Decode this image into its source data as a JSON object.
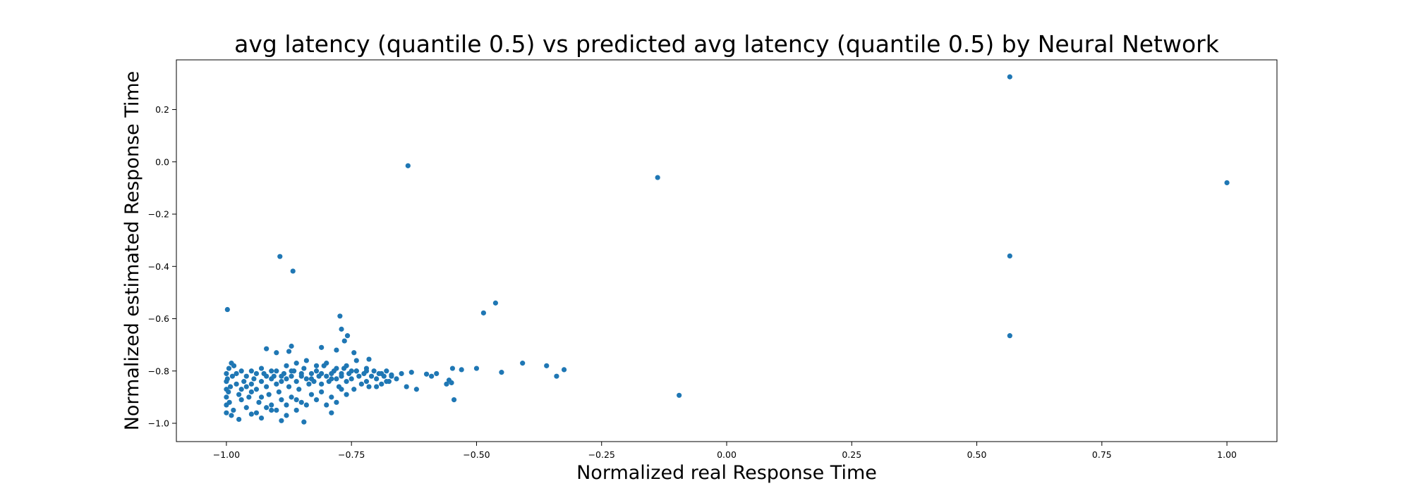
{
  "chart_data": {
    "type": "scatter",
    "title": "avg latency (quantile 0.5) vs predicted avg latency (quantile 0.5) by Neural Network",
    "xlabel": "Normalized real Response Time",
    "ylabel": "Normalized estimated Response Time",
    "xlim": [
      -1.1,
      1.1
    ],
    "ylim": [
      -1.07,
      0.39
    ],
    "xticks": [
      -1.0,
      -0.75,
      -0.5,
      -0.25,
      0.0,
      0.25,
      0.5,
      0.75,
      1.0
    ],
    "xtick_labels": [
      "−1.00",
      "−0.75",
      "−0.50",
      "−0.25",
      "0.00",
      "0.25",
      "0.50",
      "0.75",
      "1.00"
    ],
    "yticks": [
      -1.0,
      -0.8,
      -0.6,
      -0.4,
      -0.2,
      0.0,
      0.2
    ],
    "ytick_labels": [
      "−1.0",
      "−0.8",
      "−0.6",
      "−0.4",
      "−0.2",
      "0.0",
      "0.2"
    ],
    "grid": false,
    "marker_color": "#1f77b4",
    "series": [
      {
        "points": [
          [
            0.566,
            0.325
          ],
          [
            1.0,
            -0.08
          ],
          [
            0.566,
            -0.36
          ],
          [
            0.566,
            -0.665
          ],
          [
            -0.138,
            -0.06
          ],
          [
            -0.637,
            -0.015
          ],
          [
            -0.893,
            -0.362
          ],
          [
            -0.867,
            -0.418
          ],
          [
            -0.998,
            -0.565
          ],
          [
            -0.462,
            -0.54
          ],
          [
            -0.486,
            -0.578
          ],
          [
            -0.095,
            -0.893
          ],
          [
            -0.408,
            -0.77
          ],
          [
            -0.36,
            -0.78
          ],
          [
            -0.34,
            -0.82
          ],
          [
            -0.325,
            -0.795
          ],
          [
            -0.45,
            -0.805
          ],
          [
            -0.5,
            -0.79
          ],
          [
            -0.53,
            -0.795
          ],
          [
            -0.548,
            -0.79
          ],
          [
            -0.55,
            -0.845
          ],
          [
            -0.545,
            -0.91
          ],
          [
            -0.555,
            -0.835
          ],
          [
            -0.56,
            -0.85
          ],
          [
            -0.58,
            -0.81
          ],
          [
            -0.59,
            -0.82
          ],
          [
            -0.6,
            -0.812
          ],
          [
            -0.62,
            -0.87
          ],
          [
            -0.63,
            -0.805
          ],
          [
            -0.64,
            -0.86
          ],
          [
            -0.65,
            -0.81
          ],
          [
            -0.66,
            -0.83
          ],
          [
            -0.67,
            -0.815
          ],
          [
            -0.68,
            -0.84
          ],
          [
            -0.69,
            -0.81
          ],
          [
            -0.7,
            -0.86
          ],
          [
            -0.715,
            -0.755
          ],
          [
            -0.72,
            -0.8
          ],
          [
            -0.74,
            -0.76
          ],
          [
            -0.745,
            -0.73
          ],
          [
            -0.758,
            -0.665
          ],
          [
            -0.764,
            -0.685
          ],
          [
            -0.77,
            -0.64
          ],
          [
            -0.773,
            -0.59
          ],
          [
            -0.78,
            -0.72
          ],
          [
            -0.79,
            -0.96
          ],
          [
            -0.81,
            -0.71
          ],
          [
            -0.845,
            -0.995
          ],
          [
            -0.87,
            -0.705
          ],
          [
            -0.875,
            -0.725
          ],
          [
            -0.9,
            -0.73
          ],
          [
            -0.92,
            -0.715
          ],
          [
            -0.89,
            -0.99
          ],
          [
            -0.88,
            -0.97
          ],
          [
            -0.86,
            -0.95
          ],
          [
            -0.91,
            -0.95
          ],
          [
            -0.93,
            -0.98
          ],
          [
            -0.95,
            -0.965
          ],
          [
            -0.975,
            -0.985
          ],
          [
            -0.99,
            -0.97
          ],
          [
            -0.985,
            -0.78
          ],
          [
            -0.995,
            -0.79
          ],
          [
            -0.99,
            -0.77
          ],
          [
            -1.0,
            -0.81
          ],
          [
            -1.0,
            -0.84
          ],
          [
            -1.0,
            -0.87
          ],
          [
            -1.0,
            -0.9
          ],
          [
            -1.0,
            -0.93
          ],
          [
            -1.0,
            -0.96
          ],
          [
            -0.998,
            -0.83
          ],
          [
            -0.996,
            -0.88
          ],
          [
            -0.994,
            -0.92
          ],
          [
            -0.992,
            -0.86
          ],
          [
            -0.988,
            -0.82
          ],
          [
            -0.986,
            -0.95
          ],
          [
            -0.98,
            -0.85
          ],
          [
            -0.975,
            -0.89
          ],
          [
            -0.97,
            -0.87
          ],
          [
            -0.965,
            -0.84
          ],
          [
            -0.96,
            -0.86
          ],
          [
            -0.955,
            -0.9
          ],
          [
            -0.95,
            -0.85
          ],
          [
            -0.945,
            -0.83
          ],
          [
            -0.94,
            -0.87
          ],
          [
            -0.935,
            -0.92
          ],
          [
            -0.93,
            -0.84
          ],
          [
            -0.925,
            -0.81
          ],
          [
            -0.92,
            -0.86
          ],
          [
            -0.915,
            -0.89
          ],
          [
            -0.91,
            -0.83
          ],
          [
            -0.905,
            -0.82
          ],
          [
            -0.9,
            -0.85
          ],
          [
            -0.895,
            -0.88
          ],
          [
            -0.89,
            -0.84
          ],
          [
            -0.885,
            -0.81
          ],
          [
            -0.88,
            -0.83
          ],
          [
            -0.875,
            -0.86
          ],
          [
            -0.87,
            -0.82
          ],
          [
            -0.865,
            -0.8
          ],
          [
            -0.86,
            -0.84
          ],
          [
            -0.855,
            -0.87
          ],
          [
            -0.85,
            -0.82
          ],
          [
            -0.845,
            -0.79
          ],
          [
            -0.84,
            -0.83
          ],
          [
            -0.835,
            -0.85
          ],
          [
            -0.83,
            -0.81
          ],
          [
            -0.825,
            -0.84
          ],
          [
            -0.82,
            -0.8
          ],
          [
            -0.815,
            -0.82
          ],
          [
            -0.81,
            -0.85
          ],
          [
            -0.805,
            -0.78
          ],
          [
            -0.8,
            -0.82
          ],
          [
            -0.795,
            -0.84
          ],
          [
            -0.79,
            -0.81
          ],
          [
            -0.785,
            -0.8
          ],
          [
            -0.78,
            -0.83
          ],
          [
            -0.775,
            -0.86
          ],
          [
            -0.77,
            -0.82
          ],
          [
            -0.765,
            -0.79
          ],
          [
            -0.76,
            -0.84
          ],
          [
            -0.755,
            -0.81
          ],
          [
            -0.75,
            -0.83
          ],
          [
            -0.745,
            -0.87
          ],
          [
            -0.74,
            -0.8
          ],
          [
            -0.735,
            -0.82
          ],
          [
            -0.73,
            -0.85
          ],
          [
            -0.725,
            -0.81
          ],
          [
            -0.72,
            -0.84
          ],
          [
            -0.715,
            -0.86
          ],
          [
            -0.71,
            -0.82
          ],
          [
            -0.705,
            -0.8
          ],
          [
            -0.7,
            -0.83
          ],
          [
            -0.695,
            -0.81
          ],
          [
            -0.69,
            -0.85
          ],
          [
            -0.685,
            -0.82
          ],
          [
            -0.68,
            -0.8
          ],
          [
            -0.675,
            -0.84
          ],
          [
            -0.67,
            -0.82
          ],
          [
            -0.9,
            -0.8
          ],
          [
            -0.88,
            -0.78
          ],
          [
            -0.86,
            -0.77
          ],
          [
            -0.84,
            -0.76
          ],
          [
            -0.82,
            -0.78
          ],
          [
            -0.8,
            -0.77
          ],
          [
            -0.78,
            -0.79
          ],
          [
            -0.76,
            -0.78
          ],
          [
            -0.74,
            -0.8
          ],
          [
            -0.72,
            -0.79
          ],
          [
            -0.87,
            -0.9
          ],
          [
            -0.85,
            -0.92
          ],
          [
            -0.83,
            -0.89
          ],
          [
            -0.81,
            -0.88
          ],
          [
            -0.79,
            -0.9
          ],
          [
            -0.77,
            -0.87
          ],
          [
            -0.89,
            -0.91
          ],
          [
            -0.91,
            -0.93
          ],
          [
            -0.93,
            -0.9
          ],
          [
            -0.95,
            -0.88
          ],
          [
            -0.97,
            -0.91
          ],
          [
            -0.96,
            -0.94
          ],
          [
            -0.94,
            -0.96
          ],
          [
            -0.92,
            -0.94
          ],
          [
            -0.9,
            -0.95
          ],
          [
            -0.88,
            -0.93
          ],
          [
            -0.86,
            -0.91
          ],
          [
            -0.84,
            -0.93
          ],
          [
            -0.82,
            -0.91
          ],
          [
            -0.8,
            -0.93
          ],
          [
            -0.78,
            -0.92
          ],
          [
            -0.76,
            -0.89
          ],
          [
            -0.98,
            -0.81
          ],
          [
            -0.97,
            -0.8
          ],
          [
            -0.96,
            -0.82
          ],
          [
            -0.95,
            -0.8
          ],
          [
            -0.94,
            -0.81
          ],
          [
            -0.93,
            -0.79
          ],
          [
            -0.92,
            -0.82
          ],
          [
            -0.91,
            -0.8
          ],
          [
            -0.89,
            -0.82
          ],
          [
            -0.87,
            -0.8
          ],
          [
            -0.85,
            -0.81
          ],
          [
            -0.83,
            -0.83
          ],
          [
            -0.81,
            -0.81
          ],
          [
            -0.79,
            -0.83
          ],
          [
            -0.77,
            -0.81
          ],
          [
            -0.75,
            -0.8
          ]
        ]
      }
    ]
  }
}
